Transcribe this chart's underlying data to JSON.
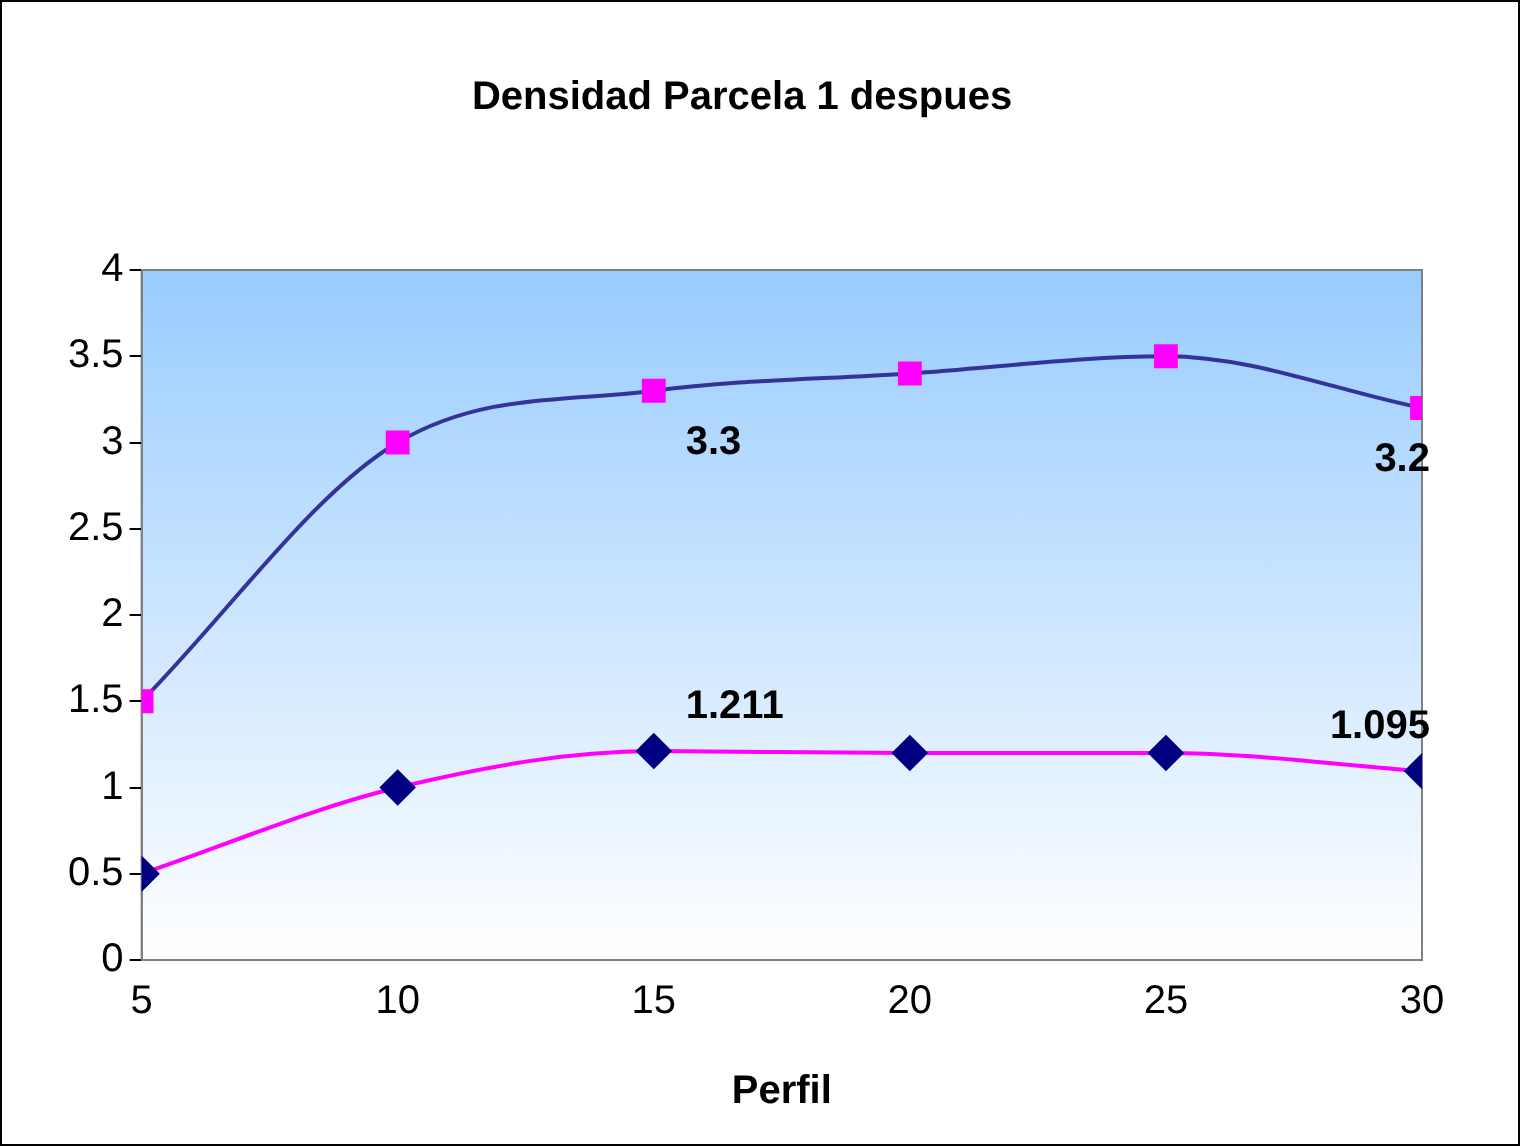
{
  "chart_data": {
    "type": "line",
    "title": "Densidad Parcela 1 despues",
    "xlabel": "Perfil",
    "x": [
      5,
      10,
      15,
      20,
      25,
      30
    ],
    "xlim": [
      5,
      30
    ],
    "xticks": [
      5,
      10,
      15,
      20,
      25,
      30
    ],
    "ylim": [
      0,
      4
    ],
    "yticks": [
      0,
      0.5,
      1,
      1.5,
      2,
      2.5,
      3,
      3.5,
      4
    ],
    "series": [
      {
        "color": "#333399",
        "colors": [
          "#ff00ff",
          "#ff00ff",
          "#ff00ff",
          "#ff00ff",
          "#ff00ff",
          "#ff00ff"
        ],
        "marker": "square",
        "values": [
          1.5,
          3.0,
          3.3,
          3.4,
          3.5,
          3.2
        ],
        "value_labels": [
          null,
          null,
          "3.3",
          null,
          null,
          "3.2"
        ]
      },
      {
        "color": "#ff00ff",
        "colors": [
          "#000080",
          "#000080",
          "#000080",
          "#000080",
          "#000080",
          "#000080"
        ],
        "marker": "diamond",
        "values": [
          0.5,
          1.0,
          1.211,
          1.2,
          1.2,
          1.095
        ],
        "value_labels": [
          null,
          null,
          "1.211",
          null,
          null,
          "1.095"
        ]
      }
    ],
    "grid": false,
    "legend": false
  }
}
